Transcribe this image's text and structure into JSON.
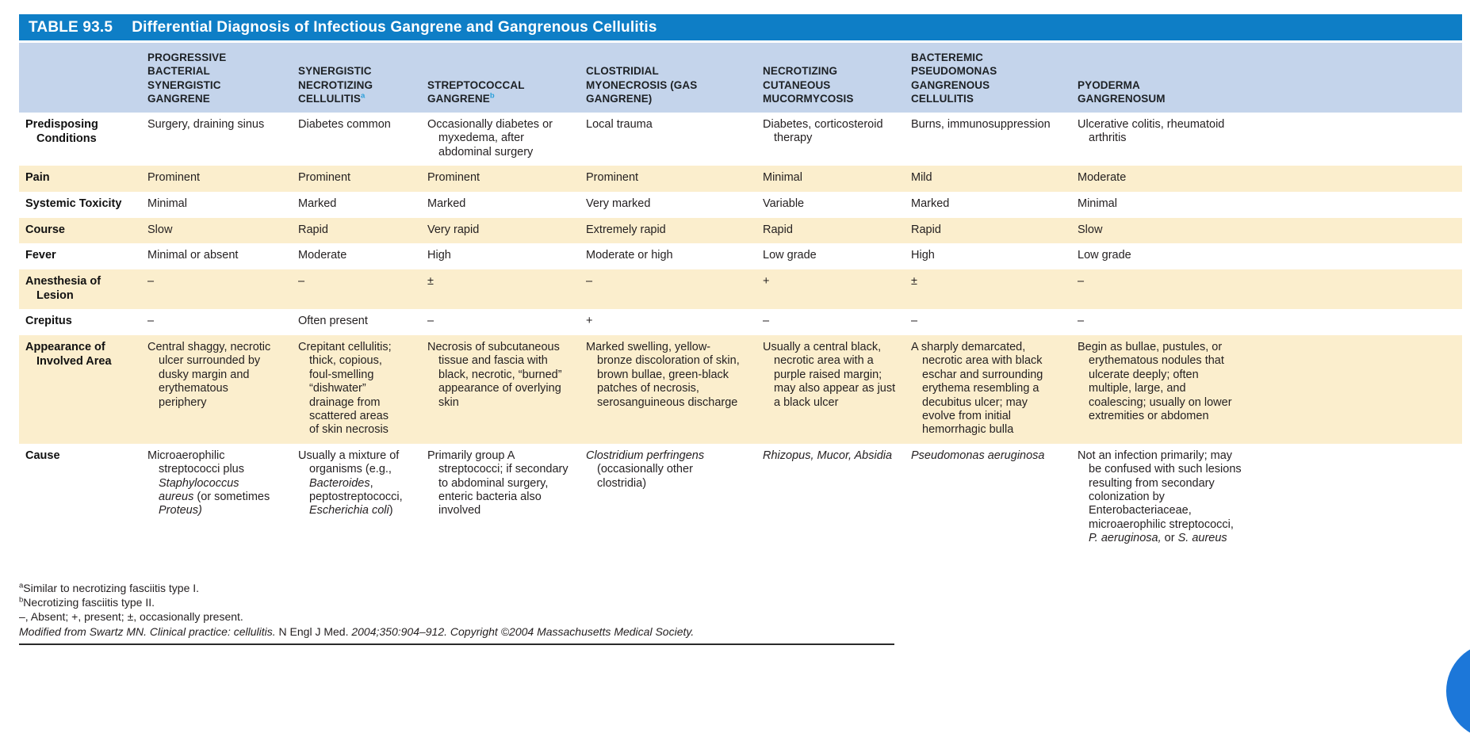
{
  "colors": {
    "title_bar_blue": "#0e7ec6",
    "header_blue": "#c4d4eb",
    "stripe_cream": "#fbeecd",
    "superscript_blue": "#2aa0da",
    "floating_button_blue": "#1c77d9"
  },
  "table": {
    "title_label": "TABLE 93.5",
    "title": "Differential Diagnosis of Infectious Gangrene and Gangrenous Cellulitis",
    "header": {
      "cols": [
        [
          {
            "t": "PROGRESSIVE\nBACTERIAL\nSYNERGISTIC\nGANGRENE"
          }
        ],
        [
          {
            "t": "SYNERGISTIC\nNECROTIZING\nCELLULITIS"
          },
          {
            "t": "a",
            "sup": true
          }
        ],
        [
          {
            "t": "STREPTOCOCCAL\nGANGRENE"
          },
          {
            "t": "b",
            "sup": true
          }
        ],
        [
          {
            "t": "CLOSTRIDIAL\nMYONECROSIS (GAS\nGANGRENE)"
          }
        ],
        [
          {
            "t": "NECROTIZING\nCUTANEOUS\nMUCORMYCOSIS"
          }
        ],
        [
          {
            "t": "BACTEREMIC\n"
          },
          {
            "t": "PSEUDOMONAS",
            "i": true
          },
          {
            "t": "\nGANGRENOUS\nCELLULITIS"
          }
        ],
        [
          {
            "t": "PYODERMA\nGANGRENOSUM"
          }
        ]
      ]
    },
    "rows": [
      {
        "label": "Predisposing Conditions",
        "cells": [
          "Surgery, draining sinus",
          "Diabetes common",
          "Occasionally diabetes or myxedema, after abdominal surgery",
          "Local trauma",
          "Diabetes, corticosteroid therapy",
          "Burns, immunosuppression",
          "Ulcerative colitis, rheumatoid arthritis"
        ]
      },
      {
        "label": "Pain",
        "cells": [
          "Prominent",
          "Prominent",
          "Prominent",
          "Prominent",
          "Minimal",
          "Mild",
          "Moderate"
        ]
      },
      {
        "label": "Systemic Toxicity",
        "cells": [
          "Minimal",
          "Marked",
          "Marked",
          "Very marked",
          "Variable",
          "Marked",
          "Minimal"
        ]
      },
      {
        "label": "Course",
        "cells": [
          "Slow",
          "Rapid",
          "Very rapid",
          "Extremely rapid",
          "Rapid",
          "Rapid",
          "Slow"
        ]
      },
      {
        "label": "Fever",
        "cells": [
          "Minimal or absent",
          "Moderate",
          "High",
          "Moderate or high",
          "Low grade",
          "High",
          "Low grade"
        ]
      },
      {
        "label": "Anesthesia of Lesion",
        "cells": [
          "–",
          "–",
          "±",
          "–",
          "+",
          "±",
          "–"
        ]
      },
      {
        "label": "Crepitus",
        "cells": [
          "–",
          "Often present",
          "–",
          "+",
          "–",
          "–",
          "–"
        ]
      },
      {
        "label": "Appearance of Involved Area",
        "cells": [
          "Central shaggy, necrotic ulcer surrounded by dusky margin and erythematous periphery",
          "Crepitant cellulitis; thick, copious, foul-smelling “dishwater” drainage from scattered areas of skin necrosis",
          "Necrosis of subcutaneous tissue and fascia with black, necrotic, “burned” appearance of overlying skin",
          "Marked swelling, yellow-bronze discoloration of skin, brown bullae, green-black patches of necrosis, serosanguineous discharge",
          "Usually a central black, necrotic area with a purple raised margin; may also appear as just a black ulcer",
          "A sharply demarcated, necrotic area with black eschar and surrounding erythema resembling a decubitus ulcer; may evolve from initial hemorrhagic bulla",
          "Begin as bullae, pustules, or erythematous nodules that ulcerate deeply; often multiple, large, and coalescing; usually on lower extremities or abdomen"
        ]
      },
      {
        "label": "Cause",
        "cells": [
          [
            {
              "t": "Microaerophilic streptococci plus "
            },
            {
              "t": "Staphylococcus aureus",
              "i": true
            },
            {
              "t": " (or sometimes "
            },
            {
              "t": "Proteus)",
              "i": true
            }
          ],
          [
            {
              "t": "Usually a mixture of organisms (e.g., "
            },
            {
              "t": "Bacteroides",
              "i": true
            },
            {
              "t": ", peptostreptococci, "
            },
            {
              "t": "Escherichia coli",
              "i": true
            },
            {
              "t": ")"
            }
          ],
          "Primarily group A streptococci; if secondary to abdominal surgery, enteric bacteria also involved",
          [
            {
              "t": "Clostridium perfringens",
              "i": true
            },
            {
              "t": " (occasionally other clostridia)"
            }
          ],
          [
            {
              "t": "Rhizopus, Mucor, Absidia",
              "i": true
            }
          ],
          [
            {
              "t": "Pseudomonas aeruginosa",
              "i": true
            }
          ],
          [
            {
              "t": "Not an infection primarily; may be confused with such lesions resulting from secondary colonization by Enterobacteriaceae, microaerophilic streptococci, "
            },
            {
              "t": "P. aeruginosa,",
              "i": true
            },
            {
              "t": " or "
            },
            {
              "t": "S. aureus",
              "i": true
            }
          ]
        ]
      }
    ],
    "footnotes": [
      [
        {
          "t": "a",
          "sup": true
        },
        {
          "t": "Similar to necrotizing fasciitis type I."
        }
      ],
      [
        {
          "t": "b",
          "sup": true
        },
        {
          "t": "Necrotizing fasciitis type II."
        }
      ],
      [
        {
          "t": "–, Absent; +, present; ±, occasionally present."
        }
      ],
      [
        {
          "t": "Modified from Swartz MN. Clinical practice: cellulitis.",
          "i": true
        },
        {
          "t": " N Engl J Med. "
        },
        {
          "t": "2004;350:904–912. Copyright ©2004 Massachusetts Medical Society.",
          "i": true
        }
      ]
    ]
  }
}
